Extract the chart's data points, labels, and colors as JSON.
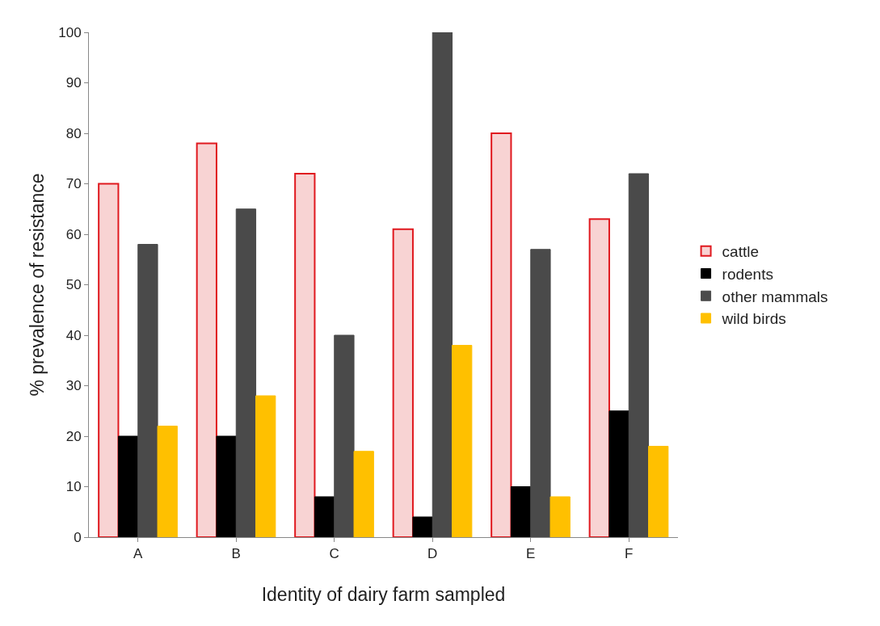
{
  "chart_data": {
    "type": "bar",
    "xlabel": "Identity of dairy farm sampled",
    "ylabel": "% prevalence of resistance",
    "categories": [
      "A",
      "B",
      "C",
      "D",
      "E",
      "F"
    ],
    "series": [
      {
        "name": "cattle",
        "color": "#f8d3d3",
        "values": [
          70,
          78,
          72,
          61,
          80,
          63
        ]
      },
      {
        "name": "rodents",
        "color": "#000000",
        "values": [
          20,
          20,
          8,
          4,
          10,
          25
        ]
      },
      {
        "name": "other mammals",
        "color": "#4a4a4a",
        "values": [
          58,
          65,
          40,
          100,
          57,
          72
        ]
      },
      {
        "name": "wild birds",
        "color": "#ffc000",
        "values": [
          22,
          28,
          17,
          38,
          8,
          18
        ]
      }
    ],
    "ylim": [
      0,
      100
    ],
    "yticks": [
      0,
      10,
      20,
      30,
      40,
      50,
      60,
      70,
      80,
      90,
      100
    ],
    "grid": false,
    "legend": "right"
  }
}
